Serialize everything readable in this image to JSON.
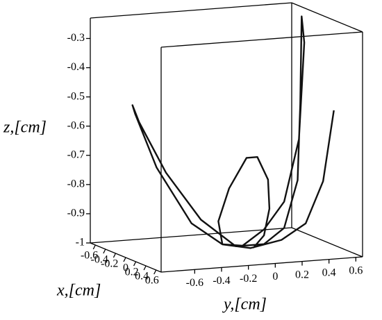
{
  "chart_data": {
    "type": "line3d",
    "xlabel": "x,[cm]",
    "ylabel": "y,[cm]",
    "zlabel": "z,[cm]",
    "xlim": [
      -0.7,
      0.7
    ],
    "ylim": [
      -0.85,
      0.65
    ],
    "zlim": [
      -1,
      -0.23
    ],
    "xticks": [
      -0.6,
      -0.4,
      -0.2,
      0,
      0.2,
      0.4,
      0.6
    ],
    "yticks": [
      -0.6,
      -0.4,
      -0.2,
      0,
      0.2,
      0.4,
      0.6
    ],
    "zticks": [
      -0.3,
      -0.4,
      -0.5,
      -0.6,
      -0.7,
      -0.8,
      -0.9,
      -1
    ],
    "series": [
      {
        "color": "#111111",
        "y": [
          0.7,
          0.62,
          0.49,
          0.31,
          0.08,
          -0.13,
          -0.36,
          -0.62,
          -0.78,
          -0.8,
          -0.75,
          -0.55,
          -0.29,
          -0.03,
          0.18,
          0.33,
          0.43,
          0.45,
          0.46,
          0.48,
          0.44,
          0.33,
          0.18,
          0.02,
          -0.13,
          -0.16,
          -0.08,
          0.05,
          0.13,
          0.21,
          0.22,
          0.18,
          0.1
        ],
        "z": [
          -0.55,
          -0.79,
          -0.93,
          -0.98,
          -1.0,
          -0.98,
          -0.9,
          -0.7,
          -0.51,
          -0.48,
          -0.54,
          -0.72,
          -0.89,
          -0.99,
          -0.99,
          -0.94,
          -0.78,
          -0.52,
          -0.22,
          -0.31,
          -0.64,
          -0.85,
          -0.94,
          -0.99,
          -0.98,
          -0.9,
          -0.79,
          -0.69,
          -0.69,
          -0.77,
          -0.87,
          -0.96,
          -1.0
        ]
      }
    ]
  }
}
